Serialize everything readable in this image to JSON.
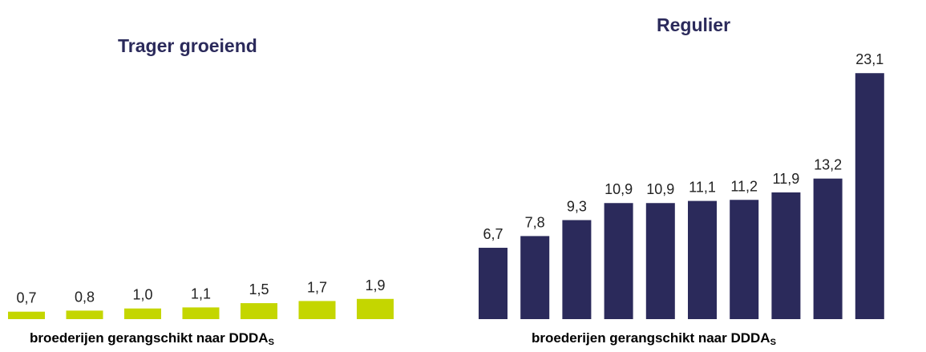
{
  "chart_data": [
    {
      "type": "bar",
      "title": "Trager groeiend",
      "xlabel_main": "broederijen gerangschikt naar DDDA",
      "xlabel_sub": "S",
      "color": "#c4d600",
      "value_labels": [
        "0,7",
        "0,8",
        "1,0",
        "1,1",
        "1,5",
        "1,7",
        "1,9"
      ],
      "values": [
        0.7,
        0.8,
        1.0,
        1.1,
        1.5,
        1.7,
        1.9
      ],
      "ylim": [
        0,
        25
      ]
    },
    {
      "type": "bar",
      "title": "Regulier",
      "xlabel_main": "broederijen gerangschikt naar DDDA",
      "xlabel_sub": "S",
      "color": "#2b2a5b",
      "value_labels": [
        "6,7",
        "7,8",
        "9,3",
        "10,9",
        "10,9",
        "11,1",
        "11,2",
        "11,9",
        "13,2",
        "23,1"
      ],
      "values": [
        6.7,
        7.8,
        9.3,
        10.9,
        10.9,
        11.1,
        11.2,
        11.9,
        13.2,
        23.1
      ],
      "ylim": [
        0,
        25
      ]
    }
  ]
}
